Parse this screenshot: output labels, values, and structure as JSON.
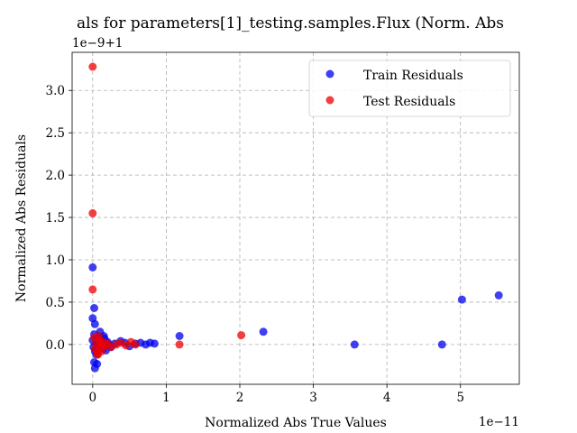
{
  "chart_data": {
    "type": "scatter",
    "title": "als for parameters[1]_testing.samples.Flux (Norm. Abs",
    "xlabel": "Normalized Abs True Values",
    "ylabel": "Normalized Abs Residuals",
    "x_offset_text": "1e−11",
    "y_offset_text": "1e−9+1",
    "xlim": [
      -0.28,
      5.8
    ],
    "ylim": [
      -0.47,
      3.45
    ],
    "x_ticks": [
      0,
      1,
      2,
      3,
      4,
      5
    ],
    "x_tick_labels": [
      "0",
      "1",
      "2",
      "3",
      "4",
      "5"
    ],
    "y_ticks": [
      0.0,
      0.5,
      1.0,
      1.5,
      2.0,
      2.5,
      3.0
    ],
    "y_tick_labels": [
      "0.0",
      "0.5",
      "1.0",
      "1.5",
      "2.0",
      "2.5",
      "3.0"
    ],
    "grid": true,
    "legend_position": "top-right",
    "series": [
      {
        "name": "Train Residuals",
        "color": "#0000ee",
        "points": [
          [
            0.0,
            0.91
          ],
          [
            0.0,
            0.31
          ],
          [
            0.02,
            0.43
          ],
          [
            0.03,
            0.24
          ],
          [
            0.02,
            0.12
          ],
          [
            0.0,
            0.05
          ],
          [
            0.01,
            -0.03
          ],
          [
            0.03,
            -0.08
          ],
          [
            0.02,
            -0.21
          ],
          [
            0.03,
            -0.28
          ],
          [
            0.06,
            -0.23
          ],
          [
            0.05,
            -0.12
          ],
          [
            0.05,
            0.02
          ],
          [
            0.07,
            0.0
          ],
          [
            0.08,
            0.09
          ],
          [
            0.1,
            0.15
          ],
          [
            0.12,
            0.03
          ],
          [
            0.12,
            -0.02
          ],
          [
            0.14,
            -0.05
          ],
          [
            0.16,
            0.07
          ],
          [
            0.2,
            0.03
          ],
          [
            0.22,
            0.0
          ],
          [
            0.25,
            -0.03
          ],
          [
            0.3,
            0.01
          ],
          [
            0.38,
            0.04
          ],
          [
            0.44,
            0.02
          ],
          [
            0.5,
            -0.02
          ],
          [
            0.58,
            0.01
          ],
          [
            0.65,
            0.02
          ],
          [
            0.72,
            0.0
          ],
          [
            0.78,
            0.02
          ],
          [
            0.84,
            0.01
          ],
          [
            0.15,
            0.1
          ],
          [
            0.18,
            -0.07
          ],
          [
            1.18,
            0.1
          ],
          [
            2.32,
            0.15
          ],
          [
            3.56,
            0.0
          ],
          [
            4.75,
            0.0
          ],
          [
            5.02,
            0.53
          ],
          [
            5.52,
            0.58
          ]
        ]
      },
      {
        "name": "Test Residuals",
        "color": "#ee0000",
        "points": [
          [
            0.0,
            3.28
          ],
          [
            0.0,
            1.55
          ],
          [
            0.0,
            0.65
          ],
          [
            0.02,
            0.08
          ],
          [
            0.03,
            -0.05
          ],
          [
            0.05,
            0.02
          ],
          [
            0.06,
            -0.1
          ],
          [
            0.07,
            -0.12
          ],
          [
            0.08,
            0.1
          ],
          [
            0.09,
            0.05
          ],
          [
            0.1,
            -0.04
          ],
          [
            0.11,
            0.0
          ],
          [
            0.12,
            -0.08
          ],
          [
            0.14,
            0.03
          ],
          [
            0.16,
            -0.02
          ],
          [
            0.2,
            0.01
          ],
          [
            0.25,
            -0.03
          ],
          [
            0.32,
            0.0
          ],
          [
            0.38,
            0.02
          ],
          [
            0.45,
            -0.01
          ],
          [
            0.52,
            0.03
          ],
          [
            0.58,
            0.0
          ],
          [
            1.18,
            0.0
          ],
          [
            2.02,
            0.11
          ]
        ]
      }
    ]
  }
}
